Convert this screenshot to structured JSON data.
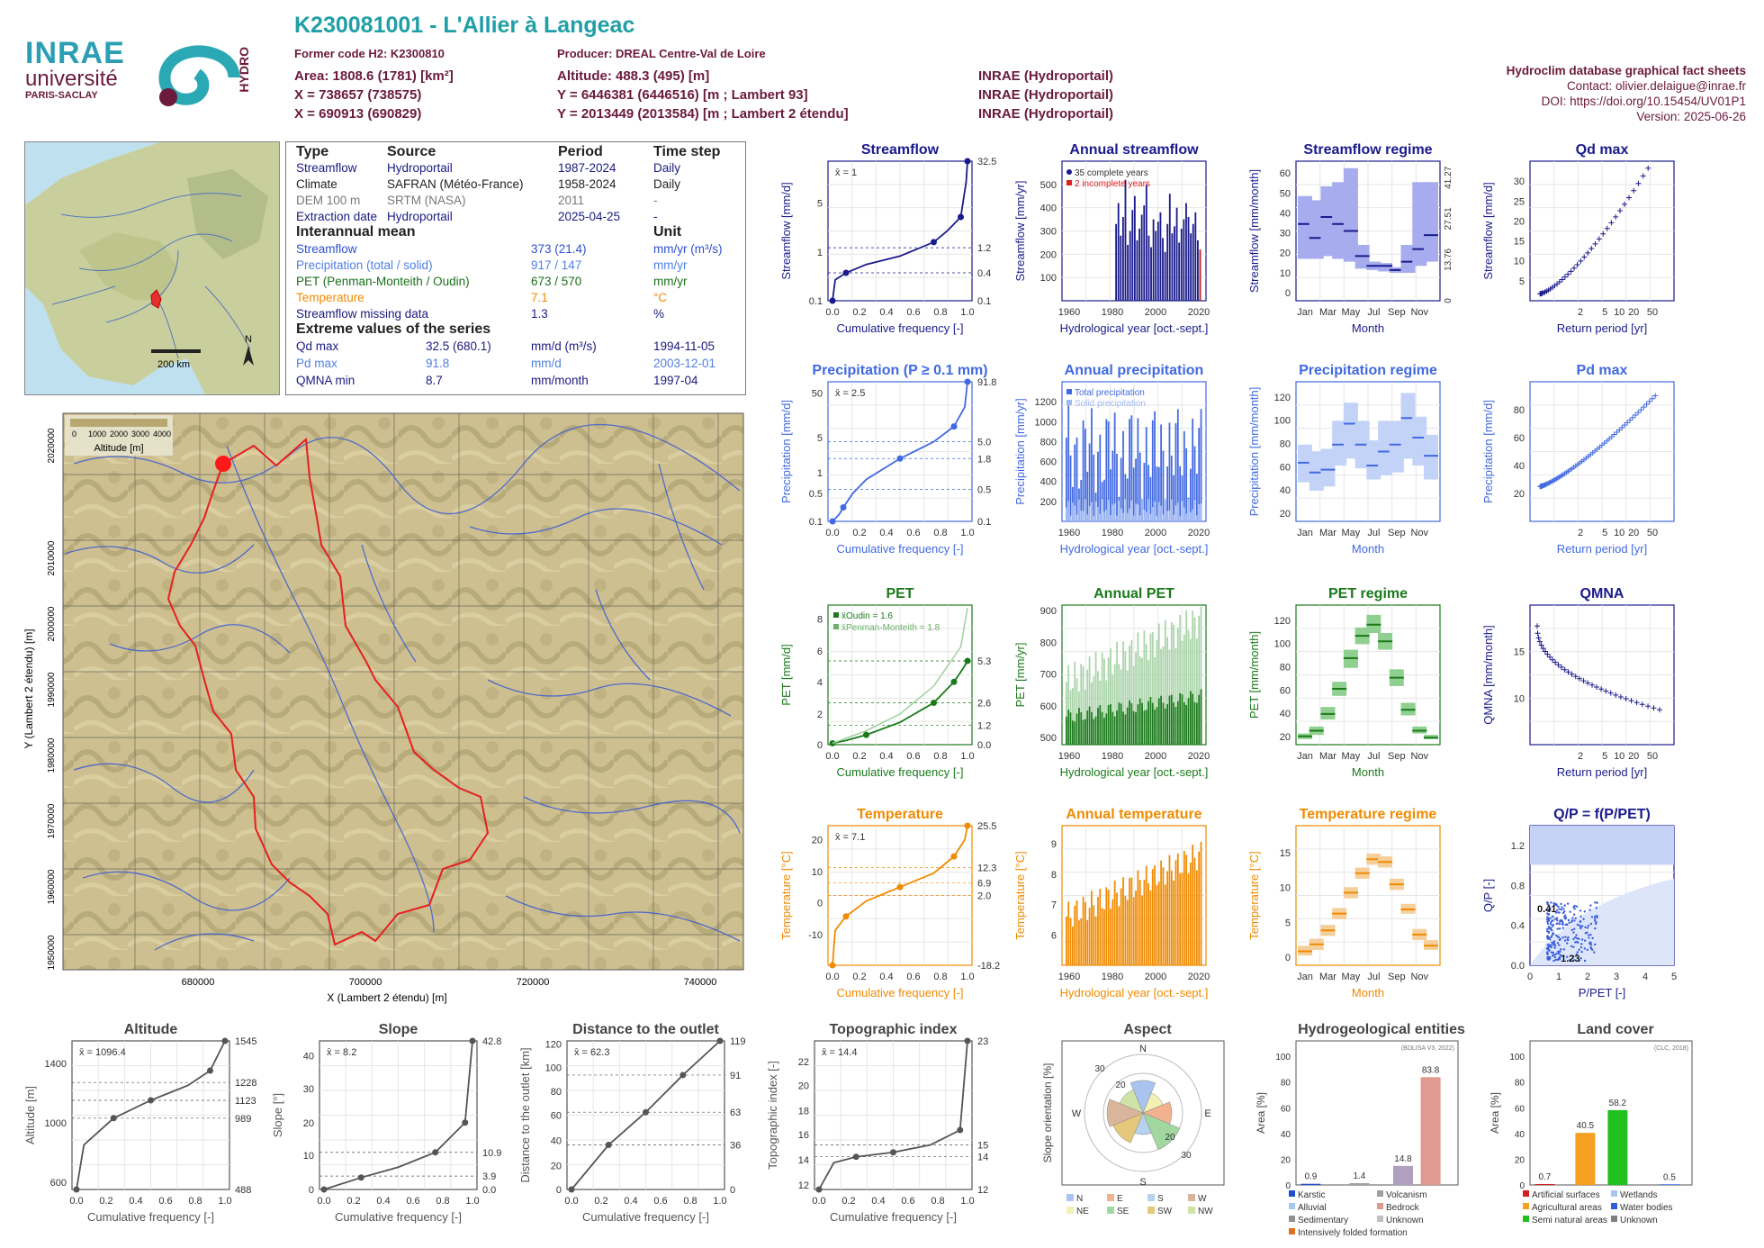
{
  "header": {
    "title": "K230081001 - L'Allier à Langeac",
    "former_code": "Former code H2: K2300810",
    "producer": "Producer: DREAL Centre-Val de Loire",
    "area": "Area: 1808.6 (1781) [km²]",
    "altitude": "Altitude: 488.3 (495) [m]",
    "x93": "X = 738657 (738575)",
    "y93": "Y = 6446381 (6446516) [m ; Lambert 93]",
    "x2e": "X = 690913 (690829)",
    "y2e": "Y = 2013449 (2013584) [m ; Lambert 2 étendu]",
    "src1": "INRAE (Hydroportail)",
    "src2": "INRAE (Hydroportail)",
    "src3": "INRAE (Hydroportail)"
  },
  "logos": {
    "inrae": "INRAE",
    "universite": "université",
    "paris_saclay": "PARIS-SACLAY",
    "hydro": "HYDRO"
  },
  "rightinfo": {
    "title": "Hydroclim database graphical fact sheets",
    "contact": "Contact: olivier.delaigue@inrae.fr",
    "doi": "DOI: https://doi.org/10.15454/UV01P1",
    "version": "Version: 2025-06-26"
  },
  "info": {
    "h_type": "Type",
    "h_source": "Source",
    "h_period": "Period",
    "h_timestep": "Time step",
    "rows": [
      {
        "type": "Streamflow",
        "source": "Hydroportail",
        "period": "1987-2024",
        "step": "Daily"
      },
      {
        "type": "Climate",
        "source": "SAFRAN (Météo-France)",
        "period": "1958-2024",
        "step": "Daily"
      },
      {
        "type": "DEM 100 m",
        "source": "SRTM (NASA)",
        "period": "2011",
        "step": "-"
      },
      {
        "type": "Extraction date",
        "source": "Hydroportail",
        "period": "2025-04-25",
        "step": "-"
      }
    ],
    "h_mean": "Interannual mean",
    "h_unit": "Unit",
    "means": [
      {
        "label": "Streamflow",
        "value": "373 (21.4)",
        "unit": "mm/yr (m³/s)"
      },
      {
        "label": "Precipitation (total / solid)",
        "value": "917 / 147",
        "unit": "mm/yr"
      },
      {
        "label": "PET (Penman-Monteith / Oudin)",
        "value": "673 / 570",
        "unit": "mm/yr"
      },
      {
        "label": "Temperature",
        "value": "7.1",
        "unit": "°C"
      },
      {
        "label": "Streamflow missing data",
        "value": "1.3",
        "unit": "%"
      }
    ],
    "h_extreme": "Extreme values of the series",
    "extremes": [
      {
        "label": "Qd max",
        "value": "32.5 (680.1)",
        "unit": "mm/d (m³/s)",
        "date": "1994-11-05"
      },
      {
        "label": "Pd max",
        "value": "91.8",
        "unit": "mm/d",
        "date": "2003-12-01"
      },
      {
        "label": "QMNA min",
        "value": "8.7",
        "unit": "mm/month",
        "date": "1997-04"
      }
    ]
  },
  "minimap": {
    "scale": "200 km",
    "north": "N"
  },
  "map": {
    "xlabel": "X (Lambert 2 étendu) [m]",
    "ylabel": "Y (Lambert 2 étendu) [m]",
    "xticks": [
      "680000",
      "700000",
      "720000",
      "740000"
    ],
    "yticks": [
      "1950000",
      "1960000",
      "1970000",
      "1980000",
      "1990000",
      "2000000",
      "2010000",
      "2020000"
    ],
    "legend_ticks": [
      "0",
      "1000",
      "2000",
      "3000",
      "4000"
    ],
    "legend_title": "Altitude [m]"
  },
  "panels": {
    "streamflow": {
      "title": "Streamflow",
      "ylabel": "Streamflow [mm/d]",
      "xlabel": "Cumulative frequency [-]",
      "mean": "x̄ = 1",
      "right_ticks": [
        "32.5",
        "1.2",
        "0.4",
        "0.1"
      ],
      "left_ticks": [
        "0.1",
        "1",
        "5"
      ]
    },
    "annual_streamflow": {
      "title": "Annual streamflow",
      "ylabel": "Streamflow [mm/yr]",
      "xlabel": "Hydrological year [oct.-sept.]",
      "legend1": "35 complete years",
      "legend2": "2 incomplete years",
      "xticks": [
        "1960",
        "1980",
        "2000",
        "2020"
      ],
      "yticks": [
        "100",
        "200",
        "300",
        "400",
        "500"
      ]
    },
    "streamflow_regime": {
      "title": "Streamflow regime",
      "ylabel": "Streamflow [mm/month]",
      "xlabel": "Month",
      "months": [
        "Jan",
        "Mar",
        "May",
        "Jul",
        "Sep",
        "Nov"
      ],
      "yticks": [
        "0",
        "10",
        "20",
        "30",
        "40",
        "50",
        "60"
      ],
      "right_ticks": [
        "0",
        "13.76",
        "27.51",
        "41.27"
      ],
      "right_label": "Streamflow [m³/s]"
    },
    "qd_max": {
      "title": "Qd max",
      "ylabel": "Streamflow [mm/d]",
      "xlabel": "Return period [yr]",
      "xticks": [
        "2",
        "5",
        "10",
        "20",
        "50"
      ],
      "yticks": [
        "5",
        "10",
        "15",
        "20",
        "25",
        "30"
      ]
    },
    "precipitation": {
      "title": "Precipitation (P ≥ 0.1 mm)",
      "ylabel": "Precipitation [mm/d]",
      "xlabel": "Cumulative frequency [-]",
      "mean": "x̄ = 2.5",
      "right_ticks": [
        "91.8",
        "5.0",
        "1.8",
        "0.5",
        "0.1"
      ],
      "left_ticks": [
        "0.1",
        "0.5",
        "1",
        "5",
        "50"
      ]
    },
    "annual_precipitation": {
      "title": "Annual precipitation",
      "ylabel": "Precipitation [mm/yr]",
      "xlabel": "Hydrological year [oct.-sept.]",
      "legend1": "Total precipitation",
      "legend2": "Solid precipitation",
      "xticks": [
        "1960",
        "1980",
        "2000",
        "2020"
      ],
      "yticks": [
        "200",
        "400",
        "600",
        "800",
        "1000",
        "1200"
      ]
    },
    "precipitation_regime": {
      "title": "Precipitation regime",
      "ylabel": "Precipitation [mm/month]",
      "xlabel": "Month",
      "months": [
        "Jan",
        "Mar",
        "May",
        "Jul",
        "Sep",
        "Nov"
      ],
      "yticks": [
        "20",
        "40",
        "60",
        "80",
        "100",
        "120"
      ]
    },
    "pd_max": {
      "title": "Pd max",
      "ylabel": "Precipitation [mm/d]",
      "xlabel": "Return period [yr]",
      "xticks": [
        "2",
        "5",
        "10",
        "20",
        "50"
      ],
      "yticks": [
        "20",
        "40",
        "60",
        "80"
      ]
    },
    "pet": {
      "title": "PET",
      "ylabel": "PET [mm/d]",
      "xlabel": "Cumulative frequency [-]",
      "mean1": "x̄Oudin = 1.6",
      "mean2": "x̄Penman-Monteith = 1.8",
      "right_ticks": [
        "5.3",
        "2.6",
        "1.2",
        "0.0"
      ],
      "left_ticks": [
        "0",
        "2",
        "4",
        "6",
        "8"
      ]
    },
    "annual_pet": {
      "title": "Annual PET",
      "ylabel": "PET [mm/yr]",
      "xlabel": "Hydrological year [oct.-sept.]",
      "xticks": [
        "1960",
        "1980",
        "2000",
        "2020"
      ],
      "yticks": [
        "500",
        "600",
        "700",
        "800",
        "900"
      ]
    },
    "pet_regime": {
      "title": "PET regime",
      "ylabel": "PET [mm/month]",
      "xlabel": "Month",
      "months": [
        "Jan",
        "Mar",
        "May",
        "Jul",
        "Sep",
        "Nov"
      ],
      "yticks": [
        "20",
        "40",
        "60",
        "80",
        "100",
        "120"
      ]
    },
    "qmna": {
      "title": "QMNA",
      "ylabel": "QMNA [mm/month]",
      "xlabel": "Return period [yr]",
      "xticks": [
        "2",
        "5",
        "10",
        "20",
        "50"
      ],
      "yticks": [
        "10",
        "15"
      ]
    },
    "temperature": {
      "title": "Temperature",
      "ylabel": "Temperature [°C]",
      "xlabel": "Cumulative frequency [-]",
      "mean": "x̄ = 7.1",
      "right_ticks": [
        "25.5",
        "12.3",
        "6.9",
        "2.0",
        "-18.2"
      ],
      "left_ticks": [
        "-10",
        "0",
        "10",
        "20"
      ]
    },
    "annual_temperature": {
      "title": "Annual temperature",
      "ylabel": "Temperature [°C]",
      "xlabel": "Hydrological year [oct.-sept.]",
      "xticks": [
        "1960",
        "1980",
        "2000",
        "2020"
      ],
      "yticks": [
        "6",
        "7",
        "8",
        "9"
      ]
    },
    "temperature_regime": {
      "title": "Temperature regime",
      "ylabel": "Temperature [°C]",
      "xlabel": "Month",
      "months": [
        "Jan",
        "Mar",
        "May",
        "Jul",
        "Sep",
        "Nov"
      ],
      "yticks": [
        "0",
        "5",
        "10",
        "15"
      ]
    },
    "qp": {
      "title": "Q/P = f(P/PET)",
      "ylabel": "Q/P [-]",
      "xlabel": "P/PET [-]",
      "xticks": [
        "0",
        "1",
        "2",
        "3",
        "4",
        "5"
      ],
      "yticks": [
        "0.0",
        "0.4",
        "0.8",
        "1.2"
      ],
      "ann1": "0.41",
      "ann2": "1.23"
    },
    "altitude": {
      "title": "Altitude",
      "ylabel": "Altitude [m]",
      "xlabel": "Cumulative frequency [-]",
      "mean": "x̄ = 1096.4",
      "right_ticks": [
        "1545",
        "1228",
        "1123",
        "989",
        "488"
      ],
      "left_ticks": [
        "600",
        "1000",
        "1400"
      ]
    },
    "slope": {
      "title": "Slope",
      "ylabel": "Slope [°]",
      "xlabel": "Cumulative frequency [-]",
      "mean": "x̄ = 8.2",
      "right_ticks": [
        "42.8",
        "10.9",
        "3.9",
        "0.0"
      ],
      "left_ticks": [
        "0",
        "10",
        "20",
        "30",
        "40"
      ]
    },
    "distance": {
      "title": "Distance to the outlet",
      "ylabel": "Distance to the outlet [km]",
      "xlabel": "Cumulative frequency [-]",
      "mean": "x̄ = 62.3",
      "right_ticks": [
        "119",
        "91",
        "63",
        "36",
        "0"
      ],
      "left_ticks": [
        "0",
        "20",
        "40",
        "60",
        "80",
        "100",
        "120"
      ]
    },
    "topo": {
      "title": "Topographic index",
      "ylabel": "Topographic index [-]",
      "xlabel": "Cumulative frequency [-]",
      "mean": "x̄ = 14.4",
      "right_ticks": [
        "23",
        "15",
        "14",
        "12"
      ],
      "left_ticks": [
        "12",
        "14",
        "16",
        "18",
        "20",
        "22"
      ]
    },
    "aspect": {
      "title": "Aspect",
      "ylabel": "Slope orientation [%]",
      "dirs": [
        "N",
        "E",
        "S",
        "W"
      ],
      "rings": [
        "20",
        "30"
      ],
      "legend": [
        "N",
        "E",
        "S",
        "W",
        "NE",
        "SE",
        "SW",
        "NW"
      ]
    },
    "hydrogeo": {
      "title": "Hydrogeological entities",
      "ylabel": "Area [%]",
      "source": "(BDLISA V3, 2022)",
      "values": [
        "0.9",
        "1.4",
        "14.8",
        "83.8"
      ],
      "legend": [
        "Karstic",
        "Volcanism",
        "Alluvial",
        "Bedrock",
        "Sedimentary",
        "Unknown",
        "Intensively folded formation"
      ],
      "yticks": [
        "0",
        "20",
        "40",
        "60",
        "80",
        "100"
      ]
    },
    "landcover": {
      "title": "Land cover",
      "ylabel": "Area [%]",
      "source": "(CLC, 2018)",
      "values": [
        "0.7",
        "40.5",
        "58.2",
        "0.5"
      ],
      "legend": [
        "Artificial surfaces",
        "Wetlands",
        "Agricultural areas",
        "Water bodies",
        "Semi natural areas",
        "Unknown"
      ],
      "yticks": [
        "0",
        "20",
        "40",
        "60",
        "80",
        "100"
      ]
    }
  },
  "chart_data": [
    {
      "type": "line",
      "title": "Streamflow",
      "x": [
        0,
        0.25,
        0.5,
        0.75,
        1.0
      ],
      "values": [
        0.1,
        0.4,
        0.6,
        1.2,
        32.5
      ],
      "xlabel": "Cumulative frequency [-]",
      "ylabel": "Streamflow [mm/d]"
    },
    {
      "type": "bar",
      "title": "Annual streamflow",
      "x_range": [
        1988,
        2024
      ],
      "ylim": [
        0,
        600
      ]
    },
    {
      "type": "bar",
      "title": "Streamflow regime",
      "categories": [
        "Jan",
        "Feb",
        "Mar",
        "Apr",
        "May",
        "Jun",
        "Jul",
        "Aug",
        "Sep",
        "Oct",
        "Nov",
        "Dec"
      ],
      "values": [
        34,
        28,
        37,
        34,
        31,
        20,
        16,
        16,
        14,
        18,
        23,
        29
      ]
    },
    {
      "type": "bar",
      "title": "Precipitation regime",
      "categories": [
        "Jan",
        "Feb",
        "Mar",
        "Apr",
        "May",
        "Jun",
        "Jul",
        "Aug",
        "Sep",
        "Oct",
        "Nov",
        "Dec"
      ],
      "values": [
        62,
        51,
        55,
        79,
        96,
        75,
        60,
        68,
        74,
        99,
        82,
        67
      ]
    },
    {
      "type": "bar",
      "title": "PET regime",
      "categories": [
        "Jan",
        "Feb",
        "Mar",
        "Apr",
        "May",
        "Jun",
        "Jul",
        "Aug",
        "Sep",
        "Oct",
        "Nov",
        "Dec"
      ],
      "values": [
        8,
        12,
        28,
        50,
        78,
        100,
        110,
        95,
        60,
        32,
        13,
        8
      ]
    },
    {
      "type": "bar",
      "title": "Temperature regime",
      "categories": [
        "Jan",
        "Feb",
        "Mar",
        "Apr",
        "May",
        "Jun",
        "Jul",
        "Aug",
        "Sep",
        "Oct",
        "Nov",
        "Dec"
      ],
      "values": [
        0.3,
        1.2,
        3.5,
        6.0,
        10.0,
        13.8,
        16.2,
        15.8,
        12.3,
        8.5,
        3.6,
        1.2
      ]
    },
    {
      "type": "bar",
      "title": "Hydrogeological entities",
      "categories": [
        "Karstic",
        "Volcanism",
        "Unknown",
        "Bedrock"
      ],
      "values": [
        0.9,
        1.4,
        14.8,
        83.8
      ]
    },
    {
      "type": "bar",
      "title": "Land cover",
      "categories": [
        "Artificial surfaces",
        "Agricultural areas",
        "Semi natural areas",
        "Water bodies"
      ],
      "values": [
        0.7,
        40.5,
        58.2,
        0.5
      ]
    }
  ]
}
